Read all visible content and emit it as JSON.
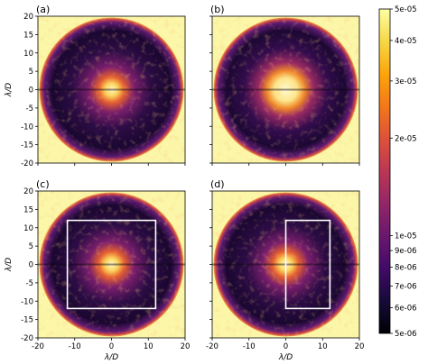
{
  "panels": [
    {
      "id": "a",
      "label": "(a)",
      "region": null
    },
    {
      "id": "b",
      "label": "(b)",
      "region": null
    },
    {
      "id": "c",
      "label": "(c)",
      "region": {
        "x0": -12,
        "x1": 12,
        "y0": -12,
        "y1": 12
      }
    },
    {
      "id": "d",
      "label": "(d)",
      "region": {
        "x0": 0,
        "x1": 12,
        "y0": -12,
        "y1": 12
      }
    }
  ],
  "axes": {
    "xlabel": "λ/D",
    "ylabel": "λ/D",
    "range": [
      -20,
      20
    ],
    "ticks": [
      "-20",
      "-15",
      "-10",
      "-5",
      "0",
      "5",
      "10",
      "15",
      "20"
    ],
    "xticks": [
      "-20",
      "-10",
      "0",
      "10",
      "20"
    ]
  },
  "colorbar": {
    "scale": "log",
    "min": 5e-06,
    "max": 5e-05,
    "colormap": "inferno",
    "tick_labels": [
      "5e-05",
      "4e-05",
      "3e-05",
      "2e-05",
      "1e-05",
      "9e-06",
      "8e-06",
      "7e-06",
      "6e-06",
      "5e-06"
    ],
    "tick_values": [
      5e-05,
      4e-05,
      3e-05,
      2e-05,
      1e-05,
      9e-06,
      8e-06,
      7e-06,
      6e-06,
      5e-06
    ]
  },
  "colors": {
    "box": "#ffffff",
    "outer": "#fbf6a8",
    "dark": "#0d0416"
  }
}
